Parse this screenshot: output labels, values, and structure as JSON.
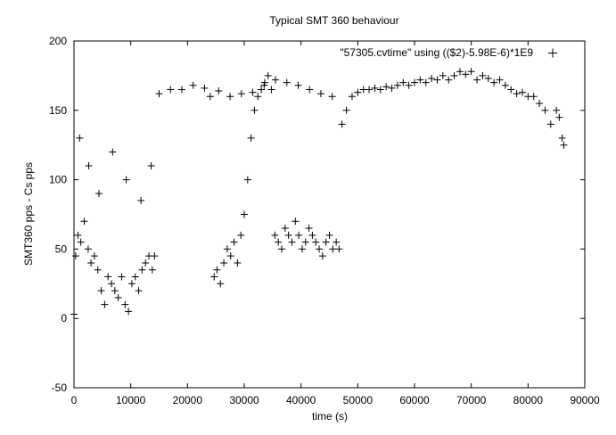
{
  "chart_data": {
    "type": "scatter",
    "title": "Typical SMT 360 behaviour",
    "xlabel": "time (s)",
    "ylabel": "SMT360 pps - Cs pps",
    "xlim": [
      0,
      90000
    ],
    "ylim": [
      -50,
      200
    ],
    "xticks": [
      0,
      10000,
      20000,
      30000,
      40000,
      50000,
      60000,
      70000,
      80000,
      90000
    ],
    "yticks": [
      -50,
      0,
      50,
      100,
      150,
      200
    ],
    "grid": false,
    "legend_position": "top-right",
    "marker": "plus",
    "marker_color": "#000000",
    "series": [
      {
        "name": "\"57305.cvtime\" using (($2)-5.98E-6)*1E9",
        "x": [
          0,
          300,
          700,
          1200,
          1800,
          2500,
          3000,
          3600,
          4200,
          4800,
          5400,
          6000,
          6600,
          7200,
          7800,
          8400,
          9000,
          9600,
          10200,
          10800,
          11400,
          12000,
          12600,
          13200,
          13800,
          14200,
          1000,
          2600,
          4400,
          6800,
          9200,
          11800,
          13600,
          24700,
          25200,
          25800,
          26400,
          27000,
          27600,
          28200,
          28800,
          29400,
          30000,
          30600,
          31200,
          31800,
          32400,
          33000,
          33600,
          34200,
          34800,
          35400,
          36000,
          36600,
          37200,
          37800,
          38400,
          39000,
          39600,
          40200,
          40800,
          41400,
          42000,
          42600,
          43200,
          43800,
          44400,
          45000,
          45600,
          46200,
          46700,
          47200,
          48000,
          49000,
          50000,
          51000,
          52000,
          53000,
          54000,
          55000,
          56000,
          57000,
          58000,
          59000,
          60000,
          61000,
          62000,
          63000,
          64000,
          65000,
          66000,
          67000,
          68000,
          69000,
          70000,
          71000,
          72000,
          73000,
          74000,
          75000,
          76000,
          77000,
          78000,
          79000,
          80000,
          81000,
          82000,
          83000,
          84000,
          85000,
          85500,
          86000,
          86300,
          15000,
          17000,
          19000,
          21000,
          23000,
          24000,
          25500,
          27500,
          29500,
          31500,
          33500,
          35500,
          37500,
          39500,
          41500,
          43500,
          45500
        ],
        "y": [
          3,
          45,
          60,
          55,
          70,
          50,
          40,
          45,
          35,
          20,
          10,
          30,
          25,
          20,
          15,
          30,
          10,
          5,
          25,
          30,
          20,
          35,
          40,
          45,
          35,
          45,
          130,
          110,
          90,
          120,
          100,
          85,
          110,
          30,
          35,
          25,
          40,
          50,
          45,
          55,
          40,
          60,
          75,
          100,
          130,
          150,
          160,
          165,
          170,
          175,
          165,
          60,
          55,
          50,
          65,
          60,
          55,
          70,
          60,
          50,
          55,
          65,
          60,
          55,
          50,
          45,
          55,
          60,
          50,
          55,
          50,
          140,
          150,
          160,
          163,
          165,
          165,
          166,
          165,
          167,
          166,
          168,
          170,
          168,
          170,
          172,
          170,
          173,
          172,
          175,
          172,
          175,
          178,
          176,
          178,
          172,
          175,
          173,
          170,
          172,
          168,
          165,
          162,
          163,
          160,
          160,
          155,
          150,
          140,
          150,
          145,
          130,
          125,
          162,
          165,
          165,
          168,
          166,
          160,
          164,
          160,
          162,
          163,
          168,
          172,
          170,
          168,
          165,
          162,
          160
        ]
      }
    ]
  }
}
